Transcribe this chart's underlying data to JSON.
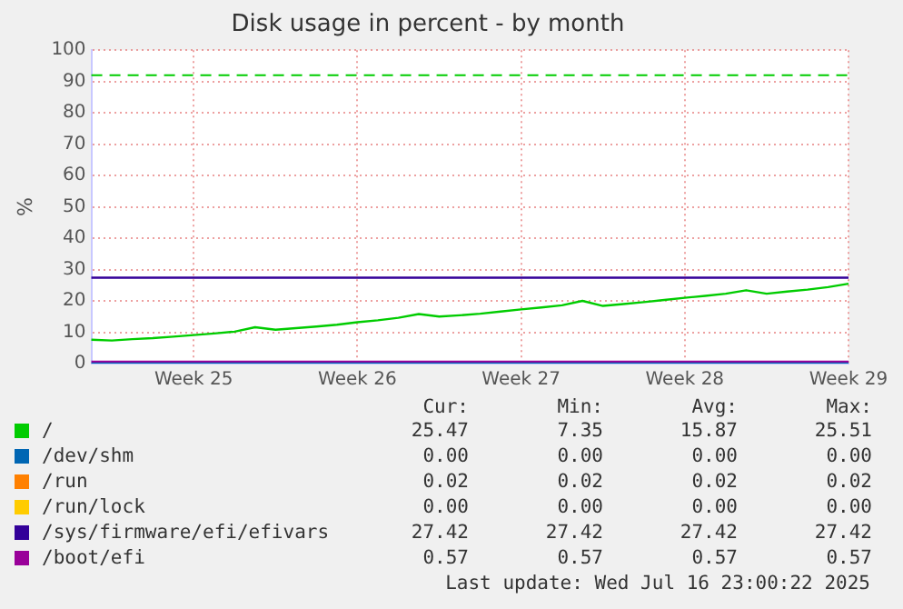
{
  "chart_data": {
    "type": "line",
    "title": "Disk usage in percent - by month",
    "ylabel": "%",
    "categories": [
      null,
      null,
      null,
      null,
      null,
      "Week 25",
      null,
      null,
      null,
      null,
      null,
      null,
      null,
      "Week 26",
      null,
      null,
      null,
      null,
      null,
      null,
      null,
      "Week 27",
      null,
      null,
      null,
      null,
      null,
      null,
      null,
      "Week 28",
      null,
      null,
      null,
      null,
      null,
      null,
      null,
      "Week 29"
    ],
    "ylim": [
      0,
      100
    ],
    "yticks": [
      0,
      10,
      20,
      30,
      40,
      50,
      60,
      70,
      80,
      90,
      100
    ],
    "grid": true,
    "legend": "bottom",
    "marker": "none",
    "line_style": "solid",
    "ref_lines": [
      {
        "axis": "y",
        "value": 92,
        "color": "#00cc00",
        "line_style": "dashed"
      }
    ],
    "series": [
      {
        "name": "/",
        "color": "#00cc00",
        "values": [
          7.6,
          7.35,
          7.8,
          8.1,
          8.6,
          9.1,
          9.6,
          10.2,
          11.6,
          10.8,
          11.3,
          11.8,
          12.4,
          13.2,
          13.8,
          14.6,
          15.8,
          15.0,
          15.4,
          15.9,
          16.6,
          17.3,
          17.9,
          18.6,
          20.0,
          18.4,
          19.0,
          19.6,
          20.3,
          21.0,
          21.6,
          22.3,
          23.4,
          22.3,
          23.0,
          23.6,
          24.4,
          25.5
        ]
      },
      {
        "name": "/dev/shm",
        "color": "#0066b3",
        "values": [
          0,
          0,
          0,
          0,
          0,
          0,
          0,
          0,
          0,
          0,
          0,
          0,
          0,
          0,
          0,
          0,
          0,
          0,
          0,
          0,
          0,
          0,
          0,
          0,
          0,
          0,
          0,
          0,
          0,
          0,
          0,
          0,
          0,
          0,
          0,
          0,
          0,
          0
        ]
      },
      {
        "name": "/run",
        "color": "#ff8000",
        "values": [
          null,
          null,
          null,
          null,
          null,
          null,
          null,
          null,
          null,
          null,
          null,
          null,
          null,
          null,
          null,
          null,
          null,
          null,
          null,
          null,
          null,
          null,
          null,
          null,
          null,
          null,
          null,
          null,
          null,
          null,
          null,
          null,
          null,
          null,
          null,
          null,
          null,
          null
        ]
      },
      {
        "name": "/run/lock",
        "color": "#ffcc00",
        "values": [
          null,
          null,
          null,
          null,
          null,
          null,
          null,
          null,
          null,
          null,
          null,
          null,
          null,
          null,
          null,
          null,
          null,
          null,
          null,
          null,
          null,
          null,
          null,
          null,
          null,
          null,
          null,
          null,
          null,
          null,
          null,
          null,
          null,
          null,
          null,
          null,
          null,
          null
        ]
      },
      {
        "name": "/sys/firmware/efi/efivars",
        "color": "#330099",
        "values": [
          27.4,
          27.4,
          27.4,
          27.4,
          27.4,
          27.4,
          27.4,
          27.4,
          27.4,
          27.4,
          27.4,
          27.4,
          27.4,
          27.4,
          27.4,
          27.4,
          27.4,
          27.4,
          27.4,
          27.4,
          27.4,
          27.4,
          27.4,
          27.4,
          27.4,
          27.4,
          27.4,
          27.4,
          27.4,
          27.4,
          27.4,
          27.4,
          27.4,
          27.4,
          27.4,
          27.4,
          27.4,
          27.4
        ]
      },
      {
        "name": "/boot/efi",
        "color": "#990099",
        "values": [
          0.6,
          0.6,
          0.6,
          0.6,
          0.6,
          0.6,
          0.6,
          0.6,
          0.6,
          0.6,
          0.6,
          0.6,
          0.6,
          0.6,
          0.6,
          0.6,
          0.6,
          0.6,
          0.6,
          0.6,
          0.6,
          0.6,
          0.6,
          0.6,
          0.6,
          0.6,
          0.6,
          0.6,
          0.6,
          0.6,
          0.6,
          0.6,
          0.6,
          0.6,
          0.6,
          0.6,
          0.6,
          0.6
        ]
      }
    ],
    "annotations": [
      "Cur:",
      "Min:",
      "Avg:",
      "Max:",
      "25.47",
      "7.35",
      "15.87",
      "25.51",
      "0.00",
      "0.00",
      "0.00",
      "0.00",
      "0.02",
      "0.02",
      "0.02",
      "0.02",
      "0.00",
      "0.00",
      "0.00",
      "0.00",
      "27.42",
      "27.42",
      "27.42",
      "27.42",
      "0.57",
      "0.57",
      "0.57",
      "0.57",
      "Last update: Wed Jul 16 23:00:22 2025"
    ]
  }
}
